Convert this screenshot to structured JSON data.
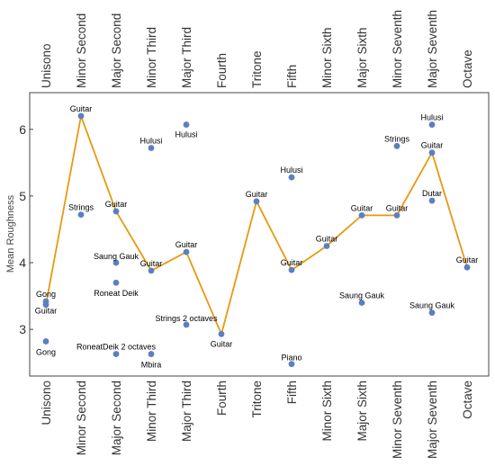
{
  "chart_data": {
    "type": "scatter",
    "title": "",
    "ylabel": "Mean Roughness",
    "xlabel": "",
    "ylim": [
      2.3,
      6.55
    ],
    "yticks": [
      3,
      4,
      5,
      6
    ],
    "grid": false,
    "categories": [
      "Unisono",
      "Minor Second",
      "Major Second",
      "Minor Third",
      "Major Third",
      "Fourth",
      "Tritone",
      "Fifth",
      "Minor Sixth",
      "Major Sixth",
      "Minor Seventh",
      "Major Seventh",
      "Octave"
    ],
    "guitar_line": {
      "color": "#e69a0f",
      "values": [
        3.37,
        6.2,
        4.77,
        3.88,
        4.16,
        2.93,
        4.92,
        3.89,
        4.25,
        4.71,
        4.71,
        5.65,
        3.93
      ]
    },
    "point_color": "#5b7fc0",
    "points": [
      {
        "x": "Unisono",
        "y": 3.42,
        "label": "Gong"
      },
      {
        "x": "Unisono",
        "y": 3.37,
        "label": "Guitar"
      },
      {
        "x": "Unisono",
        "y": 2.82,
        "label": "Gong"
      },
      {
        "x": "Minor Second",
        "y": 6.2,
        "label": "Guitar"
      },
      {
        "x": "Minor Second",
        "y": 4.72,
        "label": "Strings"
      },
      {
        "x": "Major Second",
        "y": 4.77,
        "label": "Guitar"
      },
      {
        "x": "Major Second",
        "y": 4.0,
        "label": "Saung Gauk"
      },
      {
        "x": "Major Second",
        "y": 3.7,
        "label": "Roneat Deik"
      },
      {
        "x": "Major Second",
        "y": 2.63,
        "label": "RoneatDeik 2 octaves"
      },
      {
        "x": "Minor Third",
        "y": 5.72,
        "label": "Hulusi"
      },
      {
        "x": "Minor Third",
        "y": 3.88,
        "label": "Guitar"
      },
      {
        "x": "Minor Third",
        "y": 2.63,
        "label": "Mbira"
      },
      {
        "x": "Major Third",
        "y": 6.07,
        "label": "Hulusi"
      },
      {
        "x": "Major Third",
        "y": 4.16,
        "label": "Guitar"
      },
      {
        "x": "Major Third",
        "y": 3.07,
        "label": "Strings 2 octaves"
      },
      {
        "x": "Fourth",
        "y": 2.93,
        "label": "Guitar"
      },
      {
        "x": "Tritone",
        "y": 4.92,
        "label": "Guitar"
      },
      {
        "x": "Fifth",
        "y": 5.28,
        "label": "Hulusi"
      },
      {
        "x": "Fifth",
        "y": 3.89,
        "label": "Guitar"
      },
      {
        "x": "Fifth",
        "y": 2.48,
        "label": "Piano"
      },
      {
        "x": "Minor Sixth",
        "y": 4.25,
        "label": "Guitar"
      },
      {
        "x": "Major Sixth",
        "y": 4.71,
        "label": "Guitar"
      },
      {
        "x": "Major Sixth",
        "y": 3.4,
        "label": "Saung Gauk"
      },
      {
        "x": "Minor Seventh",
        "y": 5.75,
        "label": "Strings"
      },
      {
        "x": "Minor Seventh",
        "y": 4.71,
        "label": "Guitar"
      },
      {
        "x": "Major Seventh",
        "y": 6.07,
        "label": "Hulusi"
      },
      {
        "x": "Major Seventh",
        "y": 5.65,
        "label": "Guitar"
      },
      {
        "x": "Major Seventh",
        "y": 4.93,
        "label": "Dutar"
      },
      {
        "x": "Major Seventh",
        "y": 3.25,
        "label": "Saung Gauk"
      },
      {
        "x": "Octave",
        "y": 3.93,
        "label": "Guitar"
      }
    ]
  }
}
